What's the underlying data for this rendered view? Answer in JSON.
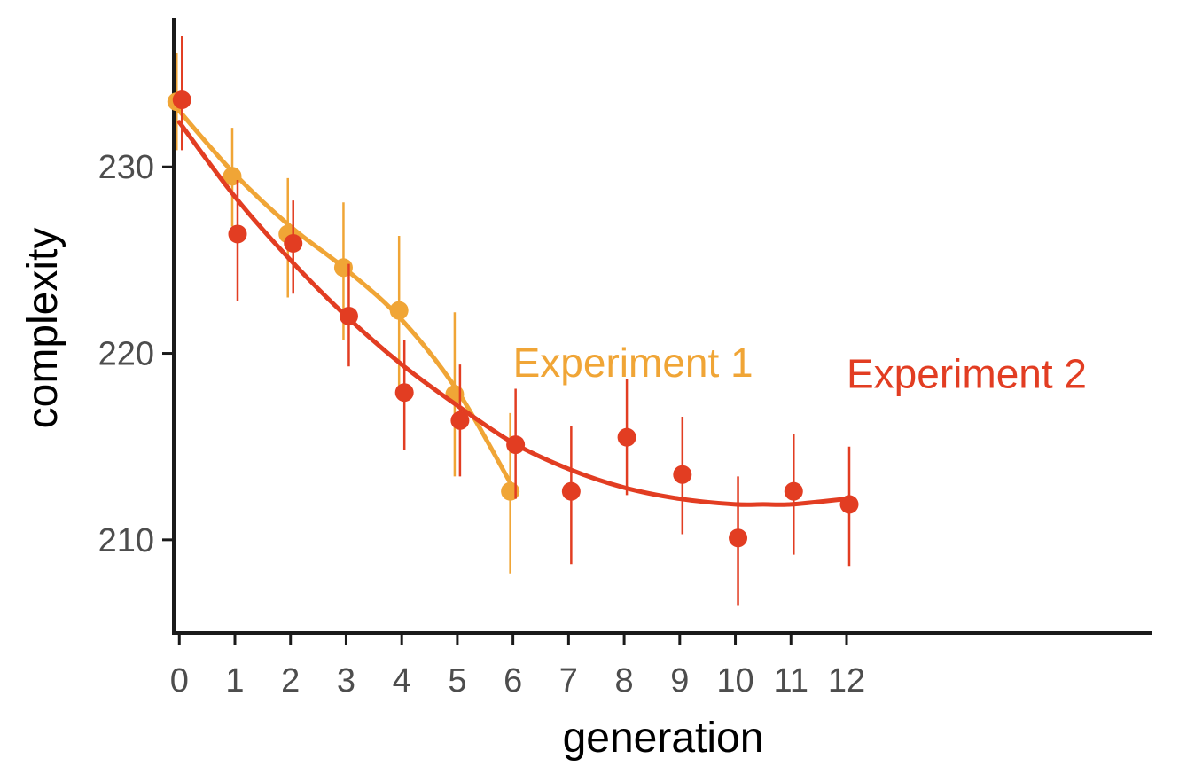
{
  "chart_data": {
    "type": "scatter",
    "title": "",
    "xlabel": "generation",
    "ylabel": "complexity",
    "xlim": [
      -0.1,
      17.5
    ],
    "ylim": [
      205,
      238
    ],
    "x_ticks": [
      0,
      1,
      2,
      3,
      4,
      5,
      6,
      7,
      8,
      9,
      10,
      11,
      12
    ],
    "x_tick_labels": [
      "0",
      "1",
      "2",
      "3",
      "4",
      "5",
      "6",
      "7",
      "8",
      "9",
      "10",
      "11",
      "12"
    ],
    "y_ticks": [
      210,
      220,
      230
    ],
    "y_tick_labels": [
      "210",
      "220",
      "230"
    ],
    "grid": false,
    "legend": "direct labels",
    "series": [
      {
        "name": "Experiment 1",
        "color": "#F0A536",
        "x": [
          0,
          1,
          2,
          3,
          4,
          5,
          6
        ],
        "y": [
          233.5,
          229.5,
          226.4,
          224.6,
          222.3,
          217.8,
          212.6
        ],
        "err_low": [
          230.9,
          226.8,
          223.0,
          220.7,
          218.2,
          213.4,
          208.2
        ],
        "err_high": [
          236.1,
          232.1,
          229.4,
          228.1,
          226.3,
          222.2,
          216.8
        ],
        "fit_x": [
          0,
          1,
          2,
          3,
          4,
          5,
          6
        ],
        "fit_y": [
          233.0,
          229.6,
          226.8,
          224.5,
          221.8,
          218.0,
          212.8
        ]
      },
      {
        "name": "Experiment 2",
        "color": "#E23D22",
        "x": [
          0,
          1,
          2,
          3,
          4,
          5,
          6,
          7,
          8,
          9,
          10,
          11,
          12
        ],
        "y": [
          233.6,
          226.4,
          225.9,
          222.0,
          217.9,
          216.4,
          215.1,
          212.6,
          215.5,
          213.5,
          210.1,
          212.6,
          211.9
        ],
        "err_low": [
          230.9,
          222.8,
          223.2,
          219.3,
          214.8,
          213.4,
          212.2,
          208.7,
          212.4,
          210.3,
          206.5,
          209.2,
          208.6
        ],
        "err_high": [
          237.0,
          229.3,
          228.2,
          224.8,
          220.7,
          219.4,
          218.1,
          216.1,
          218.6,
          216.6,
          213.4,
          215.7,
          215.0
        ],
        "fit_x": [
          0,
          1,
          2,
          3,
          4,
          5,
          6,
          7,
          8,
          9,
          10,
          10.5,
          11,
          12
        ],
        "fit_y": [
          232.4,
          228.4,
          225.0,
          222.0,
          219.4,
          217.2,
          215.2,
          213.8,
          212.8,
          212.2,
          211.9,
          211.9,
          211.9,
          212.2
        ]
      }
    ],
    "annotations": [
      {
        "text": "Experiment 1",
        "series": 0,
        "x": 6,
        "y": 219.5
      },
      {
        "text": "Experiment 2",
        "series": 1,
        "x": 12,
        "y": 218.9
      }
    ]
  }
}
